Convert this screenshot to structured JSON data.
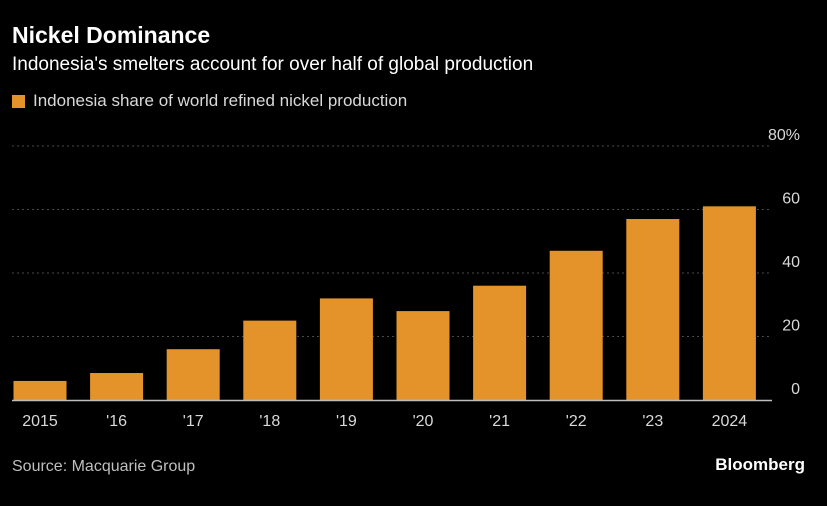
{
  "colors": {
    "background": "#000000",
    "bar": "#e3932a",
    "grid": "#4a4a4a",
    "axis": "#bfbfbf",
    "tick_text": "#d9d9d9"
  },
  "chart_data": {
    "type": "bar",
    "title": "Nickel Dominance",
    "subtitle": "Indonesia's smelters account for over half of global production",
    "categories": [
      "2015",
      "'16",
      "'17",
      "'18",
      "'19",
      "'20",
      "'21",
      "'22",
      "'23",
      "2024"
    ],
    "series": [
      {
        "name": "Indonesia share of world refined nickel production",
        "values": [
          6,
          8.5,
          16,
          25,
          32,
          28,
          36,
          47,
          57,
          61
        ]
      }
    ],
    "y_ticks": [
      "0",
      "20",
      "40",
      "60",
      "80%"
    ],
    "ylim": [
      0,
      80
    ],
    "grid": true,
    "y_axis_side": "right",
    "legend": "top-left"
  },
  "footer": {
    "source": "Source: Macquarie Group",
    "brand": "Bloomberg"
  }
}
